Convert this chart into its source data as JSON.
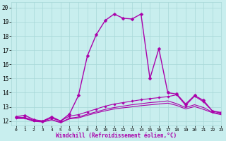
{
  "xlabel": "Windchill (Refroidissement éolien,°C)",
  "background_color": "#c8eeee",
  "grid_color": "#a8d8d8",
  "line_color": "#aa00aa",
  "xlim": [
    -0.5,
    23
  ],
  "ylim": [
    11.7,
    20.4
  ],
  "yticks": [
    12,
    13,
    14,
    15,
    16,
    17,
    18,
    19,
    20
  ],
  "xticks": [
    0,
    1,
    2,
    3,
    4,
    5,
    6,
    7,
    8,
    9,
    10,
    11,
    12,
    13,
    14,
    15,
    16,
    17,
    18,
    19,
    20,
    21,
    22,
    23
  ],
  "series": [
    {
      "x": [
        0,
        1,
        2,
        3,
        4,
        5,
        6,
        7,
        8,
        9,
        10,
        11,
        12,
        13,
        14,
        15,
        16,
        17,
        18,
        19,
        20,
        21,
        22,
        23
      ],
      "y": [
        12.3,
        12.4,
        12.1,
        12.0,
        12.3,
        12.0,
        12.5,
        13.8,
        16.6,
        18.1,
        19.1,
        19.55,
        19.25,
        19.2,
        19.55,
        15.0,
        17.1,
        14.0,
        13.9,
        13.2,
        13.8,
        13.45,
        12.7,
        12.6
      ],
      "marker": "D",
      "markersize": 2.5,
      "linewidth": 1.0
    },
    {
      "x": [
        0,
        1,
        2,
        3,
        4,
        5,
        6,
        7,
        8,
        9,
        10,
        11,
        12,
        13,
        14,
        15,
        16,
        17,
        18,
        19,
        20,
        21,
        22,
        23
      ],
      "y": [
        12.25,
        12.25,
        12.05,
        12.0,
        12.2,
        12.0,
        12.35,
        12.45,
        12.65,
        12.85,
        13.05,
        13.2,
        13.3,
        13.4,
        13.5,
        13.58,
        13.65,
        13.72,
        13.85,
        13.1,
        13.75,
        13.35,
        12.7,
        12.55
      ],
      "marker": "D",
      "markersize": 1.8,
      "linewidth": 0.8
    },
    {
      "x": [
        0,
        1,
        2,
        3,
        4,
        5,
        6,
        7,
        8,
        9,
        10,
        11,
        12,
        13,
        14,
        15,
        16,
        17,
        18,
        19,
        20,
        21,
        22,
        23
      ],
      "y": [
        12.2,
        12.2,
        12.0,
        11.95,
        12.1,
        11.9,
        12.2,
        12.28,
        12.48,
        12.65,
        12.82,
        12.95,
        13.05,
        13.15,
        13.22,
        13.3,
        13.35,
        13.42,
        13.22,
        12.95,
        13.15,
        12.95,
        12.62,
        12.48
      ],
      "marker": null,
      "markersize": 0,
      "linewidth": 0.8
    },
    {
      "x": [
        0,
        1,
        2,
        3,
        4,
        5,
        6,
        7,
        8,
        9,
        10,
        11,
        12,
        13,
        14,
        15,
        16,
        17,
        18,
        19,
        20,
        21,
        22,
        23
      ],
      "y": [
        12.18,
        12.18,
        11.98,
        11.93,
        12.08,
        11.88,
        12.15,
        12.22,
        12.4,
        12.57,
        12.72,
        12.85,
        12.93,
        13.0,
        13.08,
        13.14,
        13.2,
        13.26,
        13.1,
        12.85,
        13.02,
        12.82,
        12.58,
        12.44
      ],
      "marker": null,
      "markersize": 0,
      "linewidth": 0.8
    }
  ]
}
